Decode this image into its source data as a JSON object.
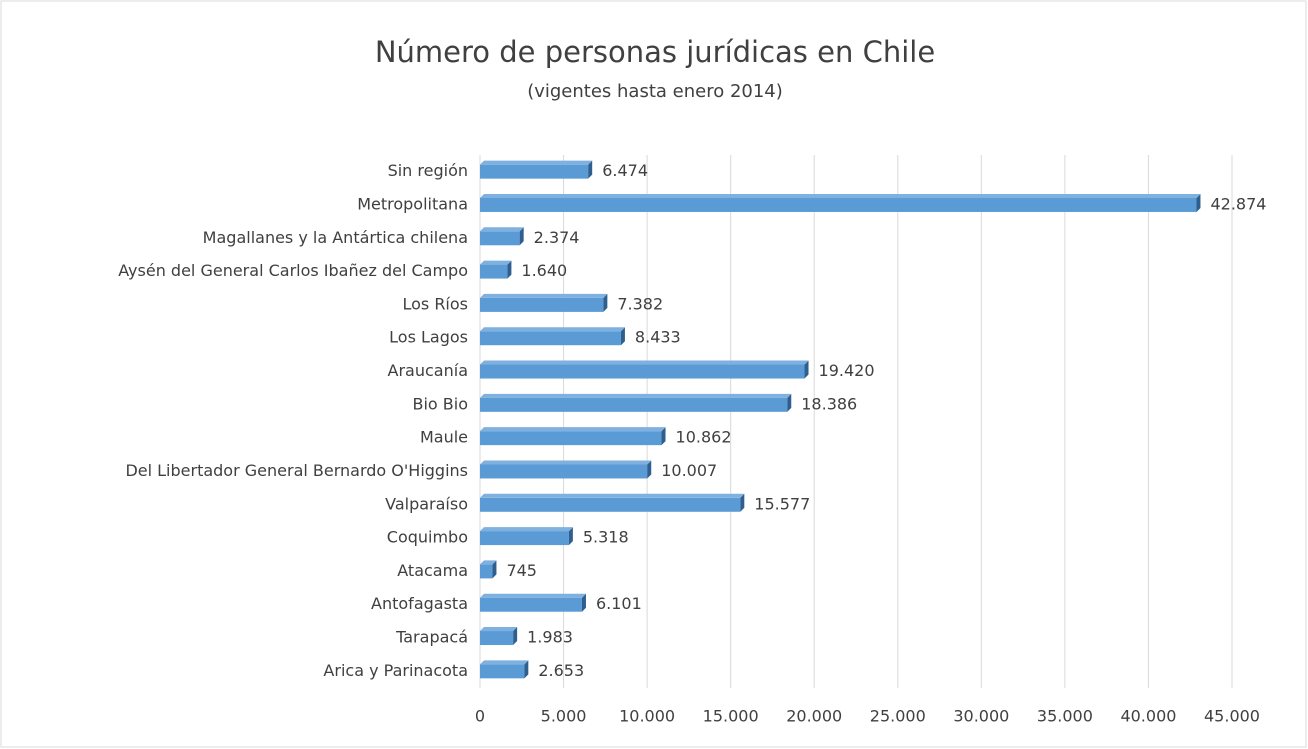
{
  "chart_data": {
    "type": "barh",
    "title": "Número de personas jurídicas en Chile",
    "subtitle": "(vigentes hasta enero 2014)",
    "categories": [
      "Arica y Parinacota",
      "Tarapacá",
      "Antofagasta",
      "Atacama",
      "Coquimbo",
      "Valparaíso",
      "Del Libertador General Bernardo O'Higgins",
      "Maule",
      "Bio Bio",
      "Araucanía",
      "Los Lagos",
      "Los Ríos",
      "Aysén del General Carlos Ibañez del Campo",
      "Magallanes y la Antártica chilena",
      "Metropolitana",
      "Sin región"
    ],
    "values": [
      2653,
      1983,
      6101,
      745,
      5318,
      15577,
      10007,
      10862,
      18386,
      19420,
      8433,
      7382,
      1640,
      2374,
      42874,
      6474
    ],
    "value_labels": [
      "2.653",
      "1.983",
      "6.101",
      "745",
      "5.318",
      "15.577",
      "10.007",
      "10.862",
      "18.386",
      "19.420",
      "8.433",
      "7.382",
      "1.640",
      "2.374",
      "42.874",
      "6.474"
    ],
    "color": "#5b9bd5",
    "xlim": [
      0,
      45000
    ],
    "xticks": [
      0,
      {
        "value": 5000,
        "label": "5.000"
      },
      {
        "value": 10000,
        "label": "10.000"
      },
      {
        "value": 15000,
        "label": "15.000"
      },
      {
        "value": 20000,
        "label": "20.000"
      },
      {
        "value": 25000,
        "label": "25.000"
      },
      {
        "value": 30000,
        "label": "30.000"
      },
      {
        "value": 35000,
        "label": "35.000"
      },
      {
        "value": 40000,
        "label": "40.000"
      },
      {
        "value": 45000,
        "label": "45.000"
      }
    ],
    "grid": true
  }
}
